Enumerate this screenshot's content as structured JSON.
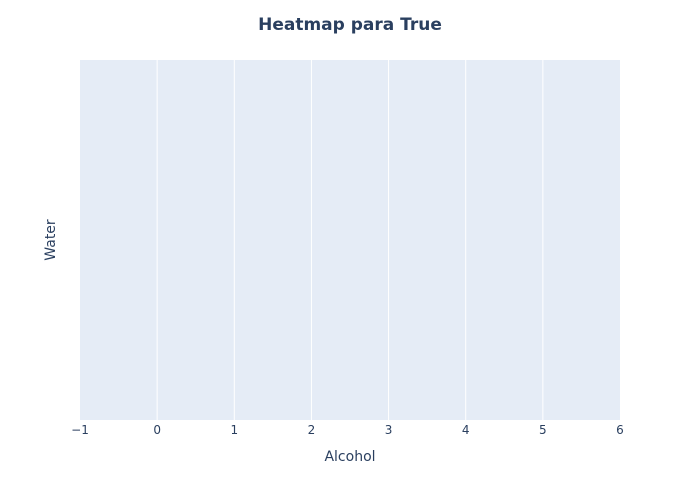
{
  "chart_data": {
    "type": "heatmap",
    "title": "Heatmap para True",
    "xlabel": "Alcohol",
    "ylabel": "Water",
    "xlim": [
      -1,
      6
    ],
    "x_ticks": [
      -1,
      0,
      1,
      2,
      3,
      4,
      5,
      6
    ],
    "x_tick_labels": [
      "−1",
      "0",
      "1",
      "2",
      "3",
      "4",
      "5",
      "6"
    ],
    "y_ticks": [],
    "x": [],
    "y": [],
    "z": [],
    "grid": true,
    "legend": "none"
  },
  "colors": {
    "plot_background": "#e5ecf6",
    "paper_background": "#ffffff",
    "gridline": "#ffffff",
    "text": "#2a3f5f"
  }
}
